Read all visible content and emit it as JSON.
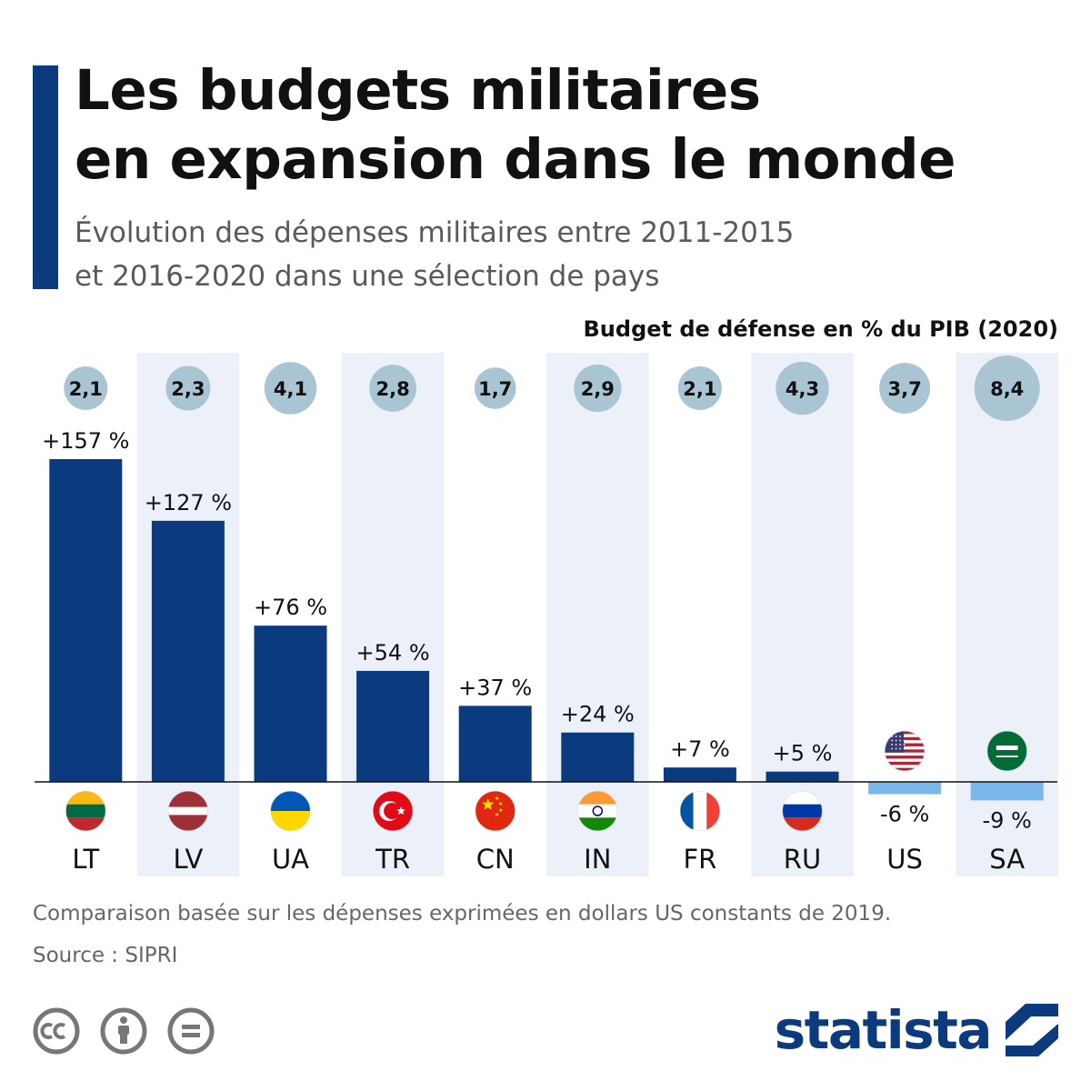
{
  "header": {
    "title_line1": "Les budgets militaires",
    "title_line2": "en expansion dans le monde",
    "subtitle_line1": "Évolution des dépenses militaires entre 2011-2015",
    "subtitle_line2": "et 2016-2020 dans une sélection de pays"
  },
  "pib_header": "Budget de défense en % du PIB (2020)",
  "footer": {
    "note": "Comparaison basée sur les dépenses exprimées en dollars US constants de 2019.",
    "source": "Source : SIPRI",
    "brand": "statista"
  },
  "colors": {
    "bar_positive": "#0b3a7e",
    "bar_negative": "#7ab8ec",
    "band": "#ecf0f8",
    "bubble": "#a9c4d3",
    "accent": "#0b3a7e"
  },
  "chart_data": {
    "type": "bar",
    "categories": [
      "LT",
      "LV",
      "UA",
      "TR",
      "CN",
      "IN",
      "FR",
      "RU",
      "US",
      "SA"
    ],
    "flag_icons": [
      "flag-lithuania-icon",
      "flag-latvia-icon",
      "flag-ukraine-icon",
      "flag-turkey-icon",
      "flag-china-icon",
      "flag-india-icon",
      "flag-france-icon",
      "flag-russia-icon",
      "flag-usa-icon",
      "flag-saudi-arabia-icon"
    ],
    "series": [
      {
        "values": [
          157,
          127,
          76,
          54,
          37,
          24,
          7,
          5,
          -6,
          -9
        ],
        "labels": [
          "+157 %",
          "+127 %",
          "+76 %",
          "+54 %",
          "+37 %",
          "+24 %",
          "+7 %",
          "+5 %",
          "-6 %",
          "-9 %"
        ]
      }
    ],
    "gdp_share": {
      "name": "Budget de défense en % du PIB (2020)",
      "values": [
        2.1,
        2.3,
        4.1,
        2.8,
        1.7,
        2.9,
        2.1,
        4.3,
        3.7,
        8.4
      ],
      "labels": [
        "2,1",
        "2,3",
        "4,1",
        "2,8",
        "1,7",
        "2,9",
        "2,1",
        "4,3",
        "3,7",
        "8,4"
      ]
    },
    "alternating_bands": true,
    "grid": false
  }
}
